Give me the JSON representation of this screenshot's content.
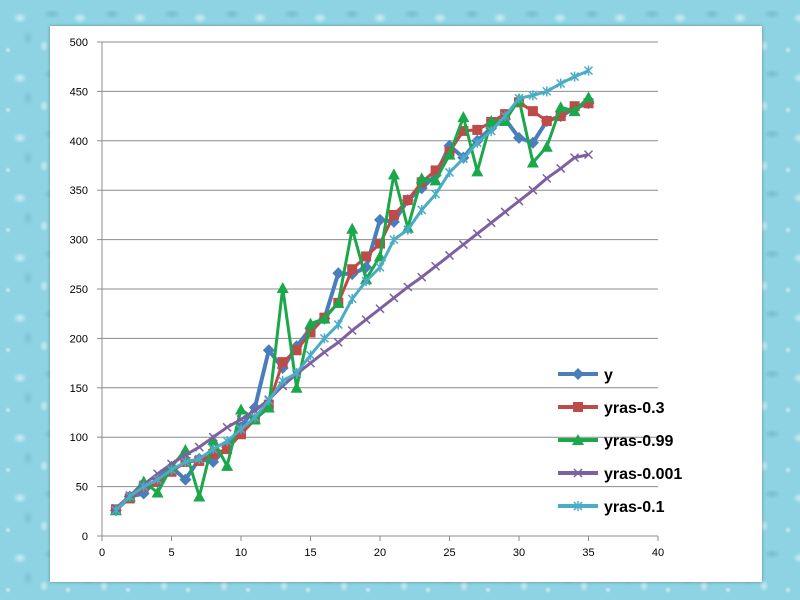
{
  "chart_data": {
    "type": "line",
    "title": "",
    "xlabel": "",
    "ylabel": "",
    "xlim": [
      0,
      40
    ],
    "ylim": [
      0,
      500
    ],
    "x_ticks": [
      0,
      5,
      10,
      15,
      20,
      25,
      30,
      35,
      40
    ],
    "y_ticks": [
      0,
      50,
      100,
      150,
      200,
      250,
      300,
      350,
      400,
      450,
      500
    ],
    "grid": "horizontal",
    "legend_position": "bottom-right",
    "x": [
      1,
      2,
      3,
      4,
      5,
      6,
      7,
      8,
      9,
      10,
      11,
      12,
      13,
      14,
      15,
      16,
      17,
      18,
      19,
      20,
      21,
      22,
      23,
      24,
      25,
      26,
      27,
      28,
      29,
      30,
      31,
      32,
      33,
      34,
      35
    ],
    "series": [
      {
        "name": "y",
        "color": "#4a7ebb",
        "marker": "diamond",
        "values": [
          26,
          40,
          43,
          58,
          70,
          57,
          78,
          75,
          90,
          110,
          130,
          188,
          170,
          192,
          210,
          220,
          266,
          265,
          272,
          320,
          318,
          340,
          352,
          365,
          395,
          383,
          400,
          413,
          422,
          403,
          398,
          420,
          425,
          433,
          438
        ]
      },
      {
        "name": "yras-0.3",
        "color": "#be4b48",
        "marker": "square",
        "values": [
          27,
          38,
          50,
          55,
          65,
          75,
          76,
          83,
          88,
          103,
          118,
          133,
          176,
          188,
          206,
          221,
          236,
          270,
          283,
          296,
          325,
          340,
          358,
          370,
          389,
          410,
          411,
          419,
          427,
          439,
          430,
          420,
          425,
          435,
          438
        ]
      },
      {
        "name": "yras-0.99",
        "color": "#1aa84a",
        "marker": "triangle",
        "values": [
          26,
          40,
          55,
          44,
          70,
          87,
          40,
          97,
          71,
          128,
          118,
          130,
          251,
          150,
          215,
          220,
          236,
          311,
          260,
          283,
          366,
          312,
          362,
          360,
          386,
          424,
          369,
          420,
          420,
          442,
          378,
          394,
          434,
          430,
          444
        ]
      },
      {
        "name": "yras-0.001",
        "color": "#7d60a0",
        "marker": "x",
        "values": [
          28,
          41,
          52,
          63,
          73,
          82,
          90,
          100,
          110,
          118,
          127,
          138,
          152,
          164,
          175,
          186,
          196,
          208,
          219,
          230,
          241,
          252,
          262,
          273,
          284,
          295,
          306,
          317,
          328,
          339,
          350,
          362,
          372,
          383,
          386
        ]
      },
      {
        "name": "yras-0.1",
        "color": "#4bacc6",
        "marker": "star",
        "values": [
          26,
          40,
          50,
          57,
          67,
          75,
          78,
          88,
          96,
          108,
          120,
          137,
          157,
          165,
          183,
          200,
          214,
          240,
          258,
          272,
          300,
          310,
          330,
          346,
          368,
          382,
          398,
          410,
          425,
          443,
          446,
          450,
          458,
          465,
          471
        ]
      }
    ]
  }
}
